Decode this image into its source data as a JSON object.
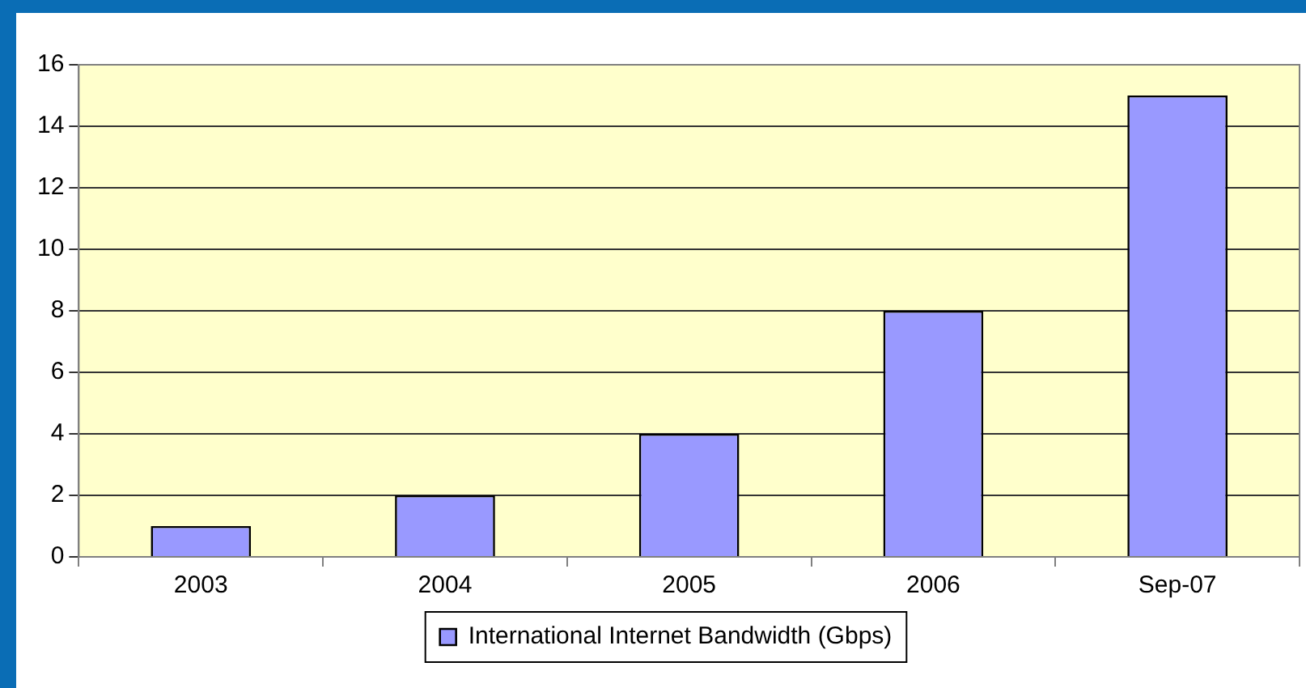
{
  "chart_data": {
    "type": "bar",
    "categories": [
      "2003",
      "2004",
      "2005",
      "2006",
      "Sep-07"
    ],
    "series": [
      {
        "name": "International Internet Bandwidth (Gbps)",
        "color": "#9999ff",
        "values": [
          1,
          2,
          4,
          8,
          15
        ]
      }
    ],
    "ylim": [
      0,
      16
    ],
    "yticks": [
      0,
      2,
      4,
      6,
      8,
      10,
      12,
      14,
      16
    ],
    "grid": "y",
    "legend": "bottom"
  }
}
